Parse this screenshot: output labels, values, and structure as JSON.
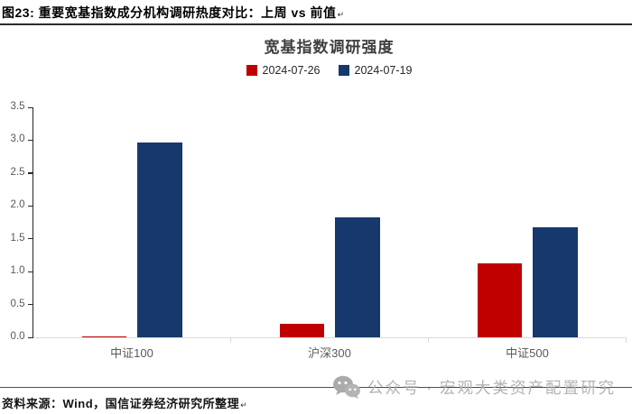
{
  "page": {
    "figure_title": "图23: 重要宽基指数成分机构调研热度对比：上周 vs 前值",
    "paragraph_mark": "↵"
  },
  "chart_data": {
    "type": "bar",
    "title": "宽基指数调研强度",
    "categories": [
      "中证100",
      "沪深300",
      "中证500"
    ],
    "series": [
      {
        "name": "2024-07-26",
        "color": "#C00000",
        "values": [
          0.02,
          0.21,
          1.12
        ]
      },
      {
        "name": "2024-07-19",
        "color": "#16386D",
        "values": [
          2.97,
          1.82,
          1.68
        ]
      }
    ],
    "ylim": [
      0,
      3.5
    ],
    "ytick_step": 0.5,
    "ytick_labels": [
      "0.0",
      "0.5",
      "1.0",
      "1.5",
      "2.0",
      "2.5",
      "3.0",
      "3.5"
    ],
    "xlabel": "",
    "ylabel": "",
    "grid": false,
    "legend_position": "top-center"
  },
  "axis_style": {
    "y_axis_color": "#262626",
    "x_axis_color": "#D9D9D9",
    "tick_label_color": "#595959"
  },
  "footer": {
    "source": "资料来源：Wind，国信证券经济研究所整理",
    "paragraph_mark": "↵"
  },
  "watermark": {
    "icon": "wechat-icon",
    "text": "公众号 · 宏观大类资产配置研究"
  }
}
